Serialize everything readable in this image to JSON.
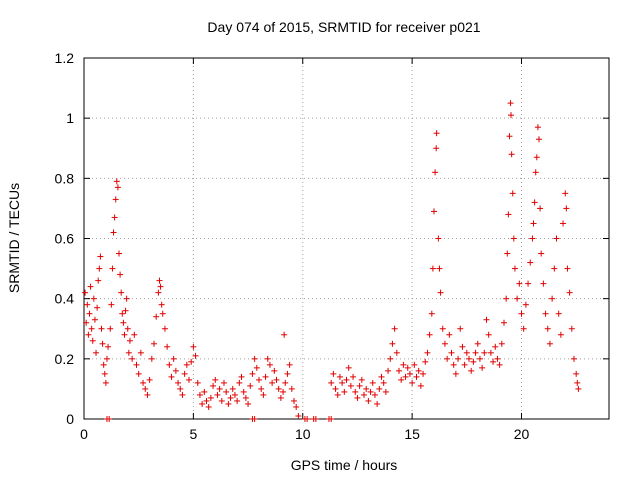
{
  "chart_data": {
    "type": "scatter",
    "title": "Day 074 of 2015, SRMTID for receiver p021",
    "xlabel": "GPS time / hours",
    "ylabel": "SRMTID / TECUs",
    "xlim": [
      0,
      24
    ],
    "ylim": [
      0,
      1.2
    ],
    "x_ticks": [
      0,
      5,
      10,
      15,
      20
    ],
    "x_tick_labels": [
      "0",
      "5",
      "10",
      "15",
      "20"
    ],
    "y_ticks": [
      0,
      0.2,
      0.4,
      0.6,
      0.8,
      1,
      1.2
    ],
    "y_tick_labels": [
      "0",
      "0.2",
      "0.4",
      "0.6",
      "0.8",
      "1",
      "1.2"
    ],
    "grid": true,
    "marker": "+",
    "color": "#e00000",
    "series": [
      {
        "name": "SRMTID",
        "points": [
          [
            0.05,
            0.42
          ],
          [
            0.1,
            0.32
          ],
          [
            0.15,
            0.38
          ],
          [
            0.2,
            0.28
          ],
          [
            0.25,
            0.35
          ],
          [
            0.3,
            0.44
          ],
          [
            0.35,
            0.3
          ],
          [
            0.4,
            0.26
          ],
          [
            0.45,
            0.4
          ],
          [
            0.5,
            0.33
          ],
          [
            0.55,
            0.22
          ],
          [
            0.6,
            0.37
          ],
          [
            0.65,
            0.46
          ],
          [
            0.7,
            0.5
          ],
          [
            0.75,
            0.54
          ],
          [
            0.8,
            0.3
          ],
          [
            0.85,
            0.25
          ],
          [
            0.9,
            0.18
          ],
          [
            0.95,
            0.15
          ],
          [
            1.0,
            0.12
          ],
          [
            1.05,
            0.2
          ],
          [
            1.1,
            0.24
          ],
          [
            1.2,
            0.3
          ],
          [
            1.25,
            0.38
          ],
          [
            1.3,
            0.5
          ],
          [
            1.35,
            0.62
          ],
          [
            1.4,
            0.67
          ],
          [
            1.45,
            0.73
          ],
          [
            1.5,
            0.79
          ],
          [
            1.55,
            0.77
          ],
          [
            1.6,
            0.55
          ],
          [
            1.65,
            0.48
          ],
          [
            1.7,
            0.42
          ],
          [
            1.75,
            0.35
          ],
          [
            1.8,
            0.32
          ],
          [
            1.85,
            0.28
          ],
          [
            1.9,
            0.36
          ],
          [
            1.95,
            0.4
          ],
          [
            2.0,
            0.3
          ],
          [
            2.05,
            0.22
          ],
          [
            2.1,
            0.26
          ],
          [
            2.2,
            0.2
          ],
          [
            2.3,
            0.28
          ],
          [
            2.4,
            0.18
          ],
          [
            2.5,
            0.15
          ],
          [
            2.6,
            0.22
          ],
          [
            2.7,
            0.12
          ],
          [
            2.8,
            0.1
          ],
          [
            2.9,
            0.08
          ],
          [
            3.0,
            0.13
          ],
          [
            3.1,
            0.2
          ],
          [
            3.2,
            0.25
          ],
          [
            3.3,
            0.34
          ],
          [
            3.4,
            0.42
          ],
          [
            3.45,
            0.46
          ],
          [
            3.5,
            0.44
          ],
          [
            3.55,
            0.38
          ],
          [
            3.6,
            0.35
          ],
          [
            3.7,
            0.3
          ],
          [
            3.8,
            0.24
          ],
          [
            3.9,
            0.18
          ],
          [
            4.0,
            0.14
          ],
          [
            4.1,
            0.2
          ],
          [
            4.2,
            0.16
          ],
          [
            4.3,
            0.12
          ],
          [
            4.4,
            0.1
          ],
          [
            4.5,
            0.08
          ],
          [
            4.6,
            0.15
          ],
          [
            4.7,
            0.18
          ],
          [
            4.8,
            0.13
          ],
          [
            4.9,
            0.19
          ],
          [
            5.0,
            0.24
          ],
          [
            5.1,
            0.21
          ],
          [
            5.2,
            0.12
          ],
          [
            5.3,
            0.08
          ],
          [
            5.4,
            0.05
          ],
          [
            5.5,
            0.09
          ],
          [
            5.6,
            0.06
          ],
          [
            5.7,
            0.04
          ],
          [
            5.8,
            0.07
          ],
          [
            5.9,
            0.11
          ],
          [
            6.0,
            0.13
          ],
          [
            6.1,
            0.08
          ],
          [
            6.2,
            0.1
          ],
          [
            6.3,
            0.06
          ],
          [
            6.4,
            0.12
          ],
          [
            6.5,
            0.09
          ],
          [
            6.6,
            0.05
          ],
          [
            6.7,
            0.07
          ],
          [
            6.8,
            0.1
          ],
          [
            6.9,
            0.08
          ],
          [
            7.0,
            0.06
          ],
          [
            7.1,
            0.12
          ],
          [
            7.2,
            0.14
          ],
          [
            7.3,
            0.09
          ],
          [
            7.4,
            0.07
          ],
          [
            7.5,
            0.05
          ],
          [
            7.6,
            0.11
          ],
          [
            7.7,
            0.15
          ],
          [
            7.8,
            0.2
          ],
          [
            7.9,
            0.17
          ],
          [
            8.0,
            0.13
          ],
          [
            8.1,
            0.1
          ],
          [
            8.2,
            0.08
          ],
          [
            8.3,
            0.14
          ],
          [
            8.4,
            0.2
          ],
          [
            8.5,
            0.18
          ],
          [
            8.6,
            0.12
          ],
          [
            8.7,
            0.16
          ],
          [
            8.8,
            0.13
          ],
          [
            8.9,
            0.1
          ],
          [
            9.0,
            0.07
          ],
          [
            9.1,
            0.09
          ],
          [
            9.15,
            0.28
          ],
          [
            9.2,
            0.12
          ],
          [
            9.3,
            0.15
          ],
          [
            9.4,
            0.18
          ],
          [
            9.5,
            0.1
          ],
          [
            9.6,
            0.06
          ],
          [
            9.7,
            0.04
          ],
          [
            9.8,
            0.01
          ],
          [
            11.3,
            0.12
          ],
          [
            11.4,
            0.15
          ],
          [
            11.5,
            0.1
          ],
          [
            11.6,
            0.08
          ],
          [
            11.7,
            0.14
          ],
          [
            11.8,
            0.12
          ],
          [
            11.9,
            0.09
          ],
          [
            12.0,
            0.13
          ],
          [
            12.1,
            0.17
          ],
          [
            12.2,
            0.11
          ],
          [
            12.3,
            0.14
          ],
          [
            12.4,
            0.09
          ],
          [
            12.5,
            0.07
          ],
          [
            12.6,
            0.11
          ],
          [
            12.7,
            0.13
          ],
          [
            12.8,
            0.08
          ],
          [
            12.9,
            0.1
          ],
          [
            13.0,
            0.06
          ],
          [
            13.1,
            0.09
          ],
          [
            13.2,
            0.12
          ],
          [
            13.3,
            0.08
          ],
          [
            13.4,
            0.05
          ],
          [
            13.5,
            0.1
          ],
          [
            13.6,
            0.14
          ],
          [
            13.7,
            0.12
          ],
          [
            13.8,
            0.09
          ],
          [
            13.9,
            0.16
          ],
          [
            14.0,
            0.2
          ],
          [
            14.1,
            0.25
          ],
          [
            14.2,
            0.3
          ],
          [
            14.3,
            0.22
          ],
          [
            14.4,
            0.16
          ],
          [
            14.5,
            0.13
          ],
          [
            14.6,
            0.18
          ],
          [
            14.7,
            0.14
          ],
          [
            14.8,
            0.17
          ],
          [
            14.9,
            0.15
          ],
          [
            15.0,
            0.12
          ],
          [
            15.1,
            0.18
          ],
          [
            15.2,
            0.14
          ],
          [
            15.3,
            0.16
          ],
          [
            15.4,
            0.11
          ],
          [
            15.5,
            0.15
          ],
          [
            15.6,
            0.19
          ],
          [
            15.7,
            0.22
          ],
          [
            15.8,
            0.28
          ],
          [
            15.9,
            0.35
          ],
          [
            15.95,
            0.5
          ],
          [
            16.0,
            0.69
          ],
          [
            16.05,
            0.82
          ],
          [
            16.1,
            0.9
          ],
          [
            16.12,
            0.95
          ],
          [
            16.2,
            0.6
          ],
          [
            16.25,
            0.5
          ],
          [
            16.3,
            0.42
          ],
          [
            16.4,
            0.3
          ],
          [
            16.5,
            0.25
          ],
          [
            16.6,
            0.2
          ],
          [
            16.7,
            0.28
          ],
          [
            16.8,
            0.22
          ],
          [
            16.9,
            0.18
          ],
          [
            17.0,
            0.15
          ],
          [
            17.1,
            0.2
          ],
          [
            17.2,
            0.3
          ],
          [
            17.3,
            0.24
          ],
          [
            17.4,
            0.18
          ],
          [
            17.5,
            0.22
          ],
          [
            17.6,
            0.2
          ],
          [
            17.7,
            0.16
          ],
          [
            17.8,
            0.19
          ],
          [
            17.9,
            0.22
          ],
          [
            18.0,
            0.25
          ],
          [
            18.1,
            0.2
          ],
          [
            18.2,
            0.17
          ],
          [
            18.3,
            0.22
          ],
          [
            18.4,
            0.33
          ],
          [
            18.5,
            0.28
          ],
          [
            18.6,
            0.22
          ],
          [
            18.7,
            0.19
          ],
          [
            18.8,
            0.24
          ],
          [
            18.9,
            0.2
          ],
          [
            19.0,
            0.18
          ],
          [
            19.1,
            0.25
          ],
          [
            19.2,
            0.32
          ],
          [
            19.3,
            0.4
          ],
          [
            19.35,
            0.55
          ],
          [
            19.4,
            0.68
          ],
          [
            19.45,
            0.94
          ],
          [
            19.5,
            1.05
          ],
          [
            19.52,
            1.01
          ],
          [
            19.55,
            0.88
          ],
          [
            19.6,
            0.75
          ],
          [
            19.65,
            0.6
          ],
          [
            19.7,
            0.5
          ],
          [
            19.8,
            0.4
          ],
          [
            19.9,
            0.45
          ],
          [
            20.0,
            0.35
          ],
          [
            20.1,
            0.3
          ],
          [
            20.2,
            0.38
          ],
          [
            20.3,
            0.45
          ],
          [
            20.4,
            0.52
          ],
          [
            20.5,
            0.6
          ],
          [
            20.55,
            0.65
          ],
          [
            20.6,
            0.72
          ],
          [
            20.65,
            0.82
          ],
          [
            20.7,
            0.87
          ],
          [
            20.75,
            0.97
          ],
          [
            20.8,
            0.93
          ],
          [
            20.85,
            0.7
          ],
          [
            20.9,
            0.55
          ],
          [
            21.0,
            0.45
          ],
          [
            21.1,
            0.35
          ],
          [
            21.2,
            0.3
          ],
          [
            21.3,
            0.25
          ],
          [
            21.4,
            0.4
          ],
          [
            21.5,
            0.5
          ],
          [
            21.6,
            0.6
          ],
          [
            21.7,
            0.35
          ],
          [
            21.8,
            0.28
          ],
          [
            21.9,
            0.65
          ],
          [
            22.0,
            0.75
          ],
          [
            22.05,
            0.7
          ],
          [
            22.1,
            0.5
          ],
          [
            22.2,
            0.42
          ],
          [
            22.3,
            0.3
          ],
          [
            22.4,
            0.2
          ],
          [
            22.5,
            0.15
          ],
          [
            22.55,
            0.12
          ],
          [
            22.6,
            0.1
          ],
          [
            1.05,
            0.0
          ],
          [
            1.15,
            0.0
          ],
          [
            7.7,
            0.0
          ],
          [
            7.8,
            0.0
          ],
          [
            10.1,
            0.0
          ],
          [
            10.2,
            0.0
          ],
          [
            10.5,
            0.0
          ],
          [
            10.6,
            0.0
          ],
          [
            11.2,
            0.0
          ],
          [
            11.3,
            0.0
          ]
        ]
      }
    ]
  }
}
